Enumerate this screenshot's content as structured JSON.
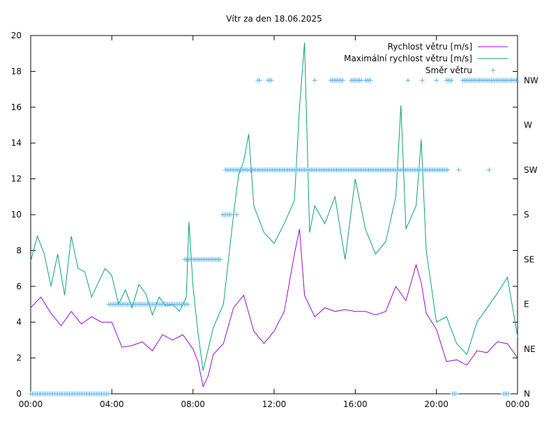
{
  "chart_data": {
    "type": "line",
    "title": "Vítr za den 18.06.2025",
    "xlabel": "",
    "ylabel": "",
    "x_ticks": [
      "00:00",
      "04:00",
      "08:00",
      "12:00",
      "16:00",
      "20:00",
      "00:00"
    ],
    "ylim": [
      0,
      20
    ],
    "y_ticks": [
      "0",
      "2",
      "4",
      "6",
      "8",
      "10",
      "12",
      "14",
      "16",
      "18",
      "20"
    ],
    "y2_ticks": [
      "N",
      "NE",
      "E",
      "SE",
      "S",
      "SW",
      "W",
      "NW"
    ],
    "grid": false,
    "legend_position": "top-right",
    "colors": {
      "speed": "#9400d3",
      "max": "#009e73",
      "direction": "#56b4e9"
    },
    "series": [
      {
        "name": "Rychlost větru [m/s]",
        "style": "line",
        "time_h": [
          0,
          0.5,
          1,
          1.5,
          2,
          2.5,
          3,
          3.5,
          4,
          4.5,
          5,
          5.5,
          6,
          6.5,
          7,
          7.5,
          8,
          8.25,
          8.5,
          8.75,
          9,
          9.5,
          10,
          10.5,
          11,
          11.5,
          12,
          12.5,
          13,
          13.25,
          13.5,
          14,
          14.5,
          15,
          15.5,
          16,
          16.5,
          17,
          17.5,
          18,
          18.5,
          19,
          19.25,
          19.5,
          20,
          20.5,
          21,
          21.5,
          22,
          22.5,
          23,
          23.5,
          24
        ],
        "values": [
          4.8,
          5.4,
          4.5,
          3.8,
          4.6,
          3.9,
          4.3,
          4.0,
          4.0,
          2.6,
          2.7,
          2.9,
          2.4,
          3.3,
          3.0,
          3.3,
          2.5,
          1.8,
          0.4,
          1.0,
          2.2,
          2.8,
          4.8,
          5.5,
          3.5,
          2.8,
          3.5,
          4.6,
          7.8,
          9.2,
          5.5,
          4.3,
          4.8,
          4.6,
          4.7,
          4.6,
          4.6,
          4.4,
          4.6,
          6.0,
          5.2,
          7.2,
          6.2,
          4.5,
          3.6,
          1.8,
          1.9,
          1.6,
          2.4,
          2.3,
          2.9,
          2.8,
          2.0
        ]
      },
      {
        "name": "Maximální rychlost větru [m/s]",
        "style": "line",
        "time_h": [
          0,
          0.33,
          0.67,
          1,
          1.33,
          1.67,
          2,
          2.33,
          2.67,
          3,
          3.33,
          3.67,
          4,
          4.33,
          4.67,
          5,
          5.33,
          5.67,
          6,
          6.33,
          6.67,
          7,
          7.33,
          7.67,
          7.8,
          8,
          8.25,
          8.5,
          8.75,
          9,
          9.5,
          9.75,
          10,
          10.25,
          10.5,
          10.75,
          11,
          11.5,
          12,
          12.5,
          13,
          13.25,
          13.5,
          13.75,
          14,
          14.5,
          15,
          15.5,
          16,
          16.5,
          17,
          17.5,
          18,
          18.25,
          18.5,
          19,
          19.25,
          19.5,
          19.75,
          20,
          20.5,
          21,
          21.5,
          22,
          22.5,
          23,
          23.5,
          24
        ],
        "values": [
          7.4,
          8.8,
          7.8,
          6.0,
          7.8,
          5.5,
          8.8,
          7.0,
          6.8,
          5.4,
          6.2,
          7.0,
          6.6,
          5.0,
          5.8,
          4.8,
          6.1,
          5.6,
          4.4,
          5.4,
          4.9,
          5.0,
          4.6,
          5.4,
          9.6,
          6.0,
          3.4,
          1.3,
          2.5,
          3.7,
          5.0,
          7.5,
          10.0,
          12.2,
          13.0,
          14.5,
          10.5,
          9.0,
          8.4,
          9.5,
          10.8,
          16.0,
          19.6,
          9.0,
          10.5,
          9.5,
          11.0,
          7.5,
          12.0,
          9.2,
          7.8,
          8.5,
          11.0,
          16.1,
          9.2,
          10.5,
          14.2,
          8.0,
          6.0,
          4.0,
          4.3,
          2.8,
          2.2,
          4.0,
          4.8,
          5.6,
          6.5,
          3.2
        ]
      },
      {
        "name": "Směr větru",
        "style": "points",
        "note_scale": "N=0, NE=2.5, E=5, SE=7.5, S=10, SW=12.5, W=15, NW=17.5 on left-axis units",
        "runs": [
          {
            "from_h": 0.0,
            "to_h": 3.85,
            "value": 0
          },
          {
            "from_h": 3.85,
            "to_h": 7.8,
            "value": 5
          },
          {
            "from_h": 7.6,
            "to_h": 9.4,
            "value": 7.5
          },
          {
            "from_h": 9.45,
            "to_h": 9.9,
            "value": 10
          },
          {
            "from_h": 10.15,
            "to_h": 10.15,
            "value": 10
          },
          {
            "from_h": 9.6,
            "to_h": 20.6,
            "value": 12.5
          },
          {
            "from_h": 21.1,
            "to_h": 21.1,
            "value": 12.5
          },
          {
            "from_h": 22.6,
            "to_h": 22.6,
            "value": 12.5
          },
          {
            "from_h": 11.2,
            "to_h": 11.3,
            "value": 17.5
          },
          {
            "from_h": 11.7,
            "to_h": 11.9,
            "value": 17.5
          },
          {
            "from_h": 14.0,
            "to_h": 14.0,
            "value": 17.5
          },
          {
            "from_h": 14.8,
            "to_h": 15.4,
            "value": 17.5
          },
          {
            "from_h": 15.8,
            "to_h": 16.3,
            "value": 17.5
          },
          {
            "from_h": 16.5,
            "to_h": 16.8,
            "value": 17.5
          },
          {
            "from_h": 18.6,
            "to_h": 18.6,
            "value": 17.5
          },
          {
            "from_h": 19.3,
            "to_h": 19.3,
            "value": 17.5
          },
          {
            "from_h": 20.0,
            "to_h": 20.0,
            "value": 17.5
          },
          {
            "from_h": 20.5,
            "to_h": 20.8,
            "value": 17.5
          },
          {
            "from_h": 21.3,
            "to_h": 24.0,
            "value": 17.5
          },
          {
            "from_h": 20.8,
            "to_h": 21.0,
            "value": 0
          },
          {
            "from_h": 23.3,
            "to_h": 23.6,
            "value": 0
          }
        ]
      }
    ]
  }
}
